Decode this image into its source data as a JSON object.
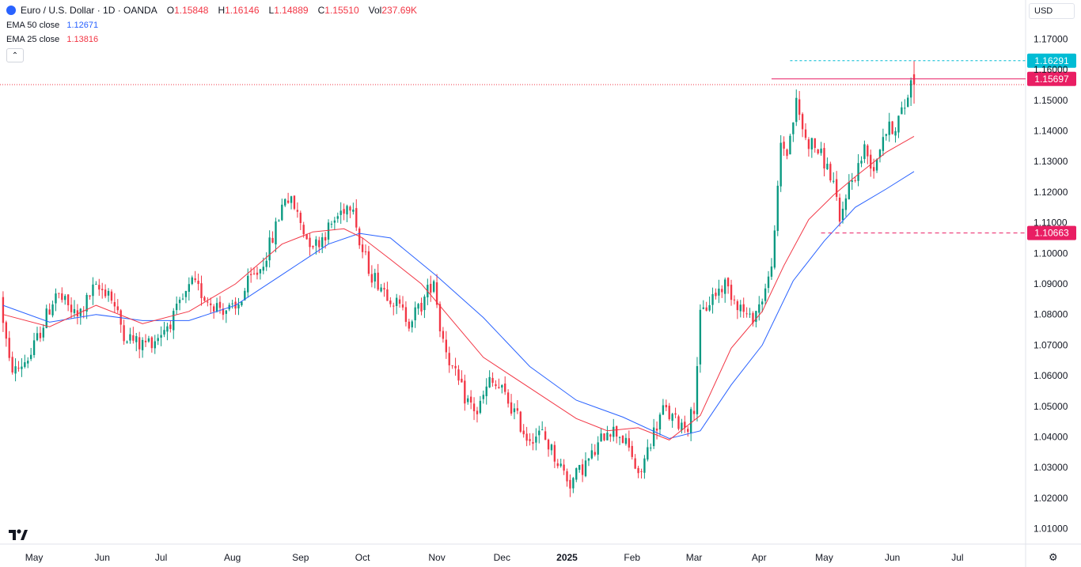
{
  "header": {
    "symbol": "Euro / U.S. Dollar · 1D · OANDA",
    "o_label": "O",
    "o_value": "1.15848",
    "h_label": "H",
    "h_value": "1.16146",
    "l_label": "L",
    "l_value": "1.14889",
    "c_label": "C",
    "c_value": "1.15510",
    "vol_label": "Vol",
    "vol_value": "237.69K"
  },
  "indicators": [
    {
      "name": "EMA 50 close",
      "value": "1.12671",
      "color": "#2962ff"
    },
    {
      "name": "EMA 25 close",
      "value": "1.13816",
      "color": "#f23645"
    }
  ],
  "currency_button": "USD",
  "colors": {
    "up": "#089981",
    "down": "#f23645",
    "ema50": "#2962ff",
    "ema25": "#f23645",
    "teal_label": "#00bcd4"
  },
  "chart_data": {
    "type": "candlestick",
    "title": "Euro / U.S. Dollar · 1D · OANDA",
    "ylim": [
      1.005,
      1.175
    ],
    "y_ticks": [
      "1.17000",
      "1.16000",
      "1.15000",
      "1.14000",
      "1.13000",
      "1.12000",
      "1.11000",
      "1.10000",
      "1.09000",
      "1.08000",
      "1.07000",
      "1.06000",
      "1.05000",
      "1.04000",
      "1.03000",
      "1.02000",
      "1.01000"
    ],
    "x_ticks": [
      {
        "label": "May",
        "bar": 10
      },
      {
        "label": "Jun",
        "bar": 32
      },
      {
        "label": "Jul",
        "bar": 51
      },
      {
        "label": "Aug",
        "bar": 74
      },
      {
        "label": "Sep",
        "bar": 96
      },
      {
        "label": "Oct",
        "bar": 116
      },
      {
        "label": "Nov",
        "bar": 140
      },
      {
        "label": "Dec",
        "bar": 161
      },
      {
        "label": "2025",
        "bar": 182
      },
      {
        "label": "Feb",
        "bar": 203
      },
      {
        "label": "Mar",
        "bar": 223
      },
      {
        "label": "Apr",
        "bar": 244
      },
      {
        "label": "May",
        "bar": 265
      },
      {
        "label": "Jun",
        "bar": 287
      },
      {
        "label": "Jul",
        "bar": 308
      }
    ],
    "x_range": [
      -1,
      330
    ],
    "anchors": [
      [
        0,
        1.0855
      ],
      [
        3,
        1.064
      ],
      [
        5,
        1.0615
      ],
      [
        10,
        1.067
      ],
      [
        18,
        1.087
      ],
      [
        25,
        1.079
      ],
      [
        30,
        1.088
      ],
      [
        35,
        1.088
      ],
      [
        40,
        1.074
      ],
      [
        45,
        1.07
      ],
      [
        50,
        1.072
      ],
      [
        56,
        1.079
      ],
      [
        62,
        1.09
      ],
      [
        68,
        1.084
      ],
      [
        72,
        1.082
      ],
      [
        76,
        1.081
      ],
      [
        80,
        1.09
      ],
      [
        84,
        1.095
      ],
      [
        88,
        1.105
      ],
      [
        92,
        1.119
      ],
      [
        95,
        1.115
      ],
      [
        99,
        1.105
      ],
      [
        102,
        1.103
      ],
      [
        106,
        1.108
      ],
      [
        111,
        1.115
      ],
      [
        114,
        1.117
      ],
      [
        116,
        1.103
      ],
      [
        120,
        1.093
      ],
      [
        126,
        1.086
      ],
      [
        132,
        1.078
      ],
      [
        136,
        1.083
      ],
      [
        140,
        1.092
      ],
      [
        142,
        1.076
      ],
      [
        146,
        1.062
      ],
      [
        150,
        1.053
      ],
      [
        154,
        1.048
      ],
      [
        158,
        1.058
      ],
      [
        162,
        1.055
      ],
      [
        166,
        1.048
      ],
      [
        170,
        1.04
      ],
      [
        175,
        1.041
      ],
      [
        180,
        1.032
      ],
      [
        184,
        1.025
      ],
      [
        188,
        1.03
      ],
      [
        192,
        1.035
      ],
      [
        196,
        1.043
      ],
      [
        200,
        1.041
      ],
      [
        204,
        1.034
      ],
      [
        206,
        1.026
      ],
      [
        210,
        1.039
      ],
      [
        214,
        1.049
      ],
      [
        218,
        1.045
      ],
      [
        222,
        1.044
      ],
      [
        224,
        1.05
      ],
      [
        226,
        1.079
      ],
      [
        230,
        1.086
      ],
      [
        234,
        1.09
      ],
      [
        238,
        1.084
      ],
      [
        242,
        1.078
      ],
      [
        245,
        1.083
      ],
      [
        248,
        1.091
      ],
      [
        250,
        1.105
      ],
      [
        252,
        1.136
      ],
      [
        254,
        1.133
      ],
      [
        257,
        1.149
      ],
      [
        260,
        1.137
      ],
      [
        263,
        1.135
      ],
      [
        266,
        1.13
      ],
      [
        269,
        1.123
      ],
      [
        271,
        1.109
      ],
      [
        273,
        1.12
      ],
      [
        276,
        1.126
      ],
      [
        279,
        1.134
      ],
      [
        282,
        1.128
      ],
      [
        285,
        1.139
      ],
      [
        289,
        1.142
      ],
      [
        292,
        1.148
      ],
      [
        294,
        1.156
      ]
    ],
    "last_bar": {
      "open": 1.15848,
      "high": 1.16146,
      "low": 1.14889,
      "close": 1.1551
    },
    "ema50": [
      [
        0,
        1.083
      ],
      [
        15,
        1.0775
      ],
      [
        30,
        1.08
      ],
      [
        45,
        1.078
      ],
      [
        60,
        1.078
      ],
      [
        75,
        1.083
      ],
      [
        90,
        1.093
      ],
      [
        105,
        1.103
      ],
      [
        115,
        1.1065
      ],
      [
        125,
        1.105
      ],
      [
        140,
        1.0925
      ],
      [
        155,
        1.079
      ],
      [
        170,
        1.063
      ],
      [
        185,
        1.052
      ],
      [
        200,
        1.0465
      ],
      [
        215,
        1.0395
      ],
      [
        225,
        1.042
      ],
      [
        235,
        1.057
      ],
      [
        245,
        1.07
      ],
      [
        255,
        1.091
      ],
      [
        265,
        1.104
      ],
      [
        275,
        1.115
      ],
      [
        285,
        1.121
      ],
      [
        294,
        1.1267
      ]
    ],
    "ema25": [
      [
        0,
        1.08
      ],
      [
        15,
        1.076
      ],
      [
        30,
        1.083
      ],
      [
        45,
        1.077
      ],
      [
        60,
        1.081
      ],
      [
        75,
        1.09
      ],
      [
        90,
        1.103
      ],
      [
        100,
        1.107
      ],
      [
        110,
        1.108
      ],
      [
        116,
        1.105
      ],
      [
        125,
        1.098
      ],
      [
        135,
        1.09
      ],
      [
        145,
        1.078
      ],
      [
        155,
        1.066
      ],
      [
        170,
        1.056
      ],
      [
        185,
        1.046
      ],
      [
        195,
        1.042
      ],
      [
        205,
        1.043
      ],
      [
        215,
        1.039
      ],
      [
        225,
        1.047
      ],
      [
        235,
        1.069
      ],
      [
        245,
        1.081
      ],
      [
        252,
        1.096
      ],
      [
        260,
        1.111
      ],
      [
        268,
        1.119
      ],
      [
        275,
        1.125
      ],
      [
        285,
        1.133
      ],
      [
        294,
        1.1382
      ]
    ],
    "price_labels": [
      {
        "value": 1.16291,
        "text": "1.16291",
        "bg": "#00bcd4",
        "line": "dotted",
        "line_from_bar": 254
      },
      {
        "value": 1.15697,
        "text": "1.15697",
        "bg": "#e91e63",
        "line": "solid",
        "line_from_bar": 248
      },
      {
        "value": 1.10663,
        "text": "1.10663",
        "bg": "#e91e63",
        "line": "dashed",
        "line_from_bar": 264
      }
    ],
    "current_price_line": 1.1551
  }
}
